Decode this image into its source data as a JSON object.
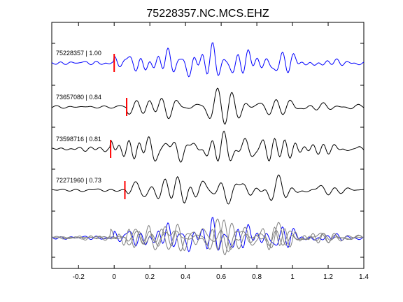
{
  "chart_data": {
    "type": "line",
    "title": "75228357.NC.MCS.EHZ",
    "xlabel": "",
    "ylabel": "",
    "xlim": [
      -0.35,
      1.4
    ],
    "x_ticks": [
      -0.2,
      0,
      0.2,
      0.4,
      0.6,
      0.8,
      1,
      1.2,
      1.4
    ],
    "x_tick_labels": [
      "-0.2",
      "0",
      "0.2",
      "0.4",
      "0.6",
      "0.8",
      "1",
      "1.2",
      "1.4"
    ],
    "grid": false,
    "colors": {
      "master": "#0000ff",
      "trace": "#000000",
      "stack": "#808080",
      "pick": "#ff0000"
    },
    "traces": [
      {
        "label": "75228357 | 1.00",
        "event": "75228357",
        "cc": 1.0,
        "pick_time": 0.0,
        "color": "#0000ff",
        "seed": 1
      },
      {
        "label": "73657080 | 0.84",
        "event": "73657080",
        "cc": 0.84,
        "pick_time": 0.07,
        "color": "#000000",
        "seed": 2
      },
      {
        "label": "73598716 | 0.81",
        "event": "73598716",
        "cc": 0.81,
        "pick_time": -0.02,
        "color": "#000000",
        "seed": 3
      },
      {
        "label": "72271960 | 0.73",
        "event": "72271960",
        "cc": 0.73,
        "pick_time": 0.06,
        "color": "#000000",
        "seed": 4
      }
    ],
    "overlay": {
      "description_none": "",
      "series_count": 4
    }
  }
}
